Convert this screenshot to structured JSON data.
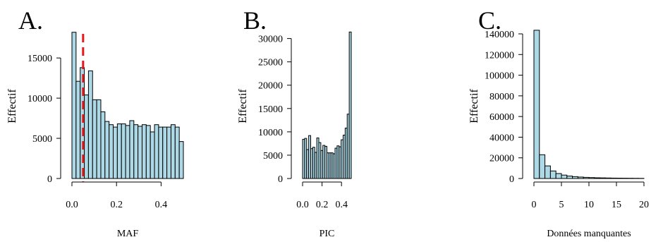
{
  "theme": {
    "bar_fill": "#add8e6",
    "bar_stroke": "#000000",
    "ref_line_color": "#e41a1c"
  },
  "chart_data": [
    {
      "type": "bar",
      "panel_letter": "A.",
      "xlabel": "MAF",
      "ylabel": "Effectif",
      "xlim": [
        0,
        0.5
      ],
      "ylim": [
        0,
        18000
      ],
      "xticks": [
        0.0,
        0.2,
        0.4
      ],
      "xtick_labels": [
        "0.0",
        "0.2",
        "0.4"
      ],
      "yticks": [
        0,
        5000,
        10000,
        15000
      ],
      "ytick_labels": [
        "0",
        "5000",
        "10000",
        "15000"
      ],
      "bin_start": 0,
      "bin_width": 0.01667,
      "values": [
        18200,
        12100,
        13800,
        10400,
        13400,
        9800,
        9800,
        8300,
        7100,
        6700,
        6400,
        6800,
        6800,
        6600,
        7200,
        6700,
        6500,
        6700,
        6600,
        5800,
        6700,
        6400,
        6400,
        6400,
        6700,
        6400,
        4600
      ],
      "reference_line": {
        "x": 0.05,
        "style": "dashed"
      },
      "grid": false
    },
    {
      "type": "bar",
      "panel_letter": "B.",
      "xlabel": "PIC",
      "ylabel": "Effectif",
      "xlim": [
        0,
        0.5
      ],
      "ylim": [
        0,
        31000
      ],
      "xticks": [
        0.0,
        0.2,
        0.4
      ],
      "xtick_labels": [
        "0.0",
        "0.2",
        "0.4"
      ],
      "yticks": [
        0,
        5000,
        10000,
        15000,
        20000,
        25000,
        30000
      ],
      "ytick_labels": [
        "0",
        "5000",
        "10000",
        "15000",
        "20000",
        "25000",
        "30000"
      ],
      "bin_start": 0,
      "bin_width": 0.01923,
      "values": [
        8400,
        8600,
        6200,
        9200,
        6400,
        6700,
        5600,
        8700,
        7700,
        6000,
        7100,
        6900,
        5500,
        5500,
        5500,
        5300,
        6500,
        7000,
        6800,
        8300,
        9300,
        10800,
        13800,
        31400
      ],
      "grid": false
    },
    {
      "type": "bar",
      "panel_letter": "C.",
      "xlabel": "Données manquantes",
      "ylabel": "Effectif",
      "xlim": [
        0,
        20
      ],
      "ylim": [
        0,
        140000
      ],
      "xticks": [
        0,
        5,
        10,
        15,
        20
      ],
      "xtick_labels": [
        "0",
        "5",
        "10",
        "15",
        "20"
      ],
      "yticks": [
        0,
        20000,
        40000,
        60000,
        80000,
        100000,
        120000,
        140000
      ],
      "ytick_labels": [
        "0",
        "20000",
        "40000",
        "60000",
        "80000",
        "100000",
        "120000",
        "140000"
      ],
      "bin_start": 0,
      "bin_width": 1,
      "values": [
        143500,
        23000,
        12200,
        7300,
        4800,
        3300,
        2400,
        1800,
        1400,
        1100,
        900,
        700,
        600,
        500,
        400,
        350,
        300,
        250,
        200,
        150
      ],
      "grid": false
    }
  ]
}
